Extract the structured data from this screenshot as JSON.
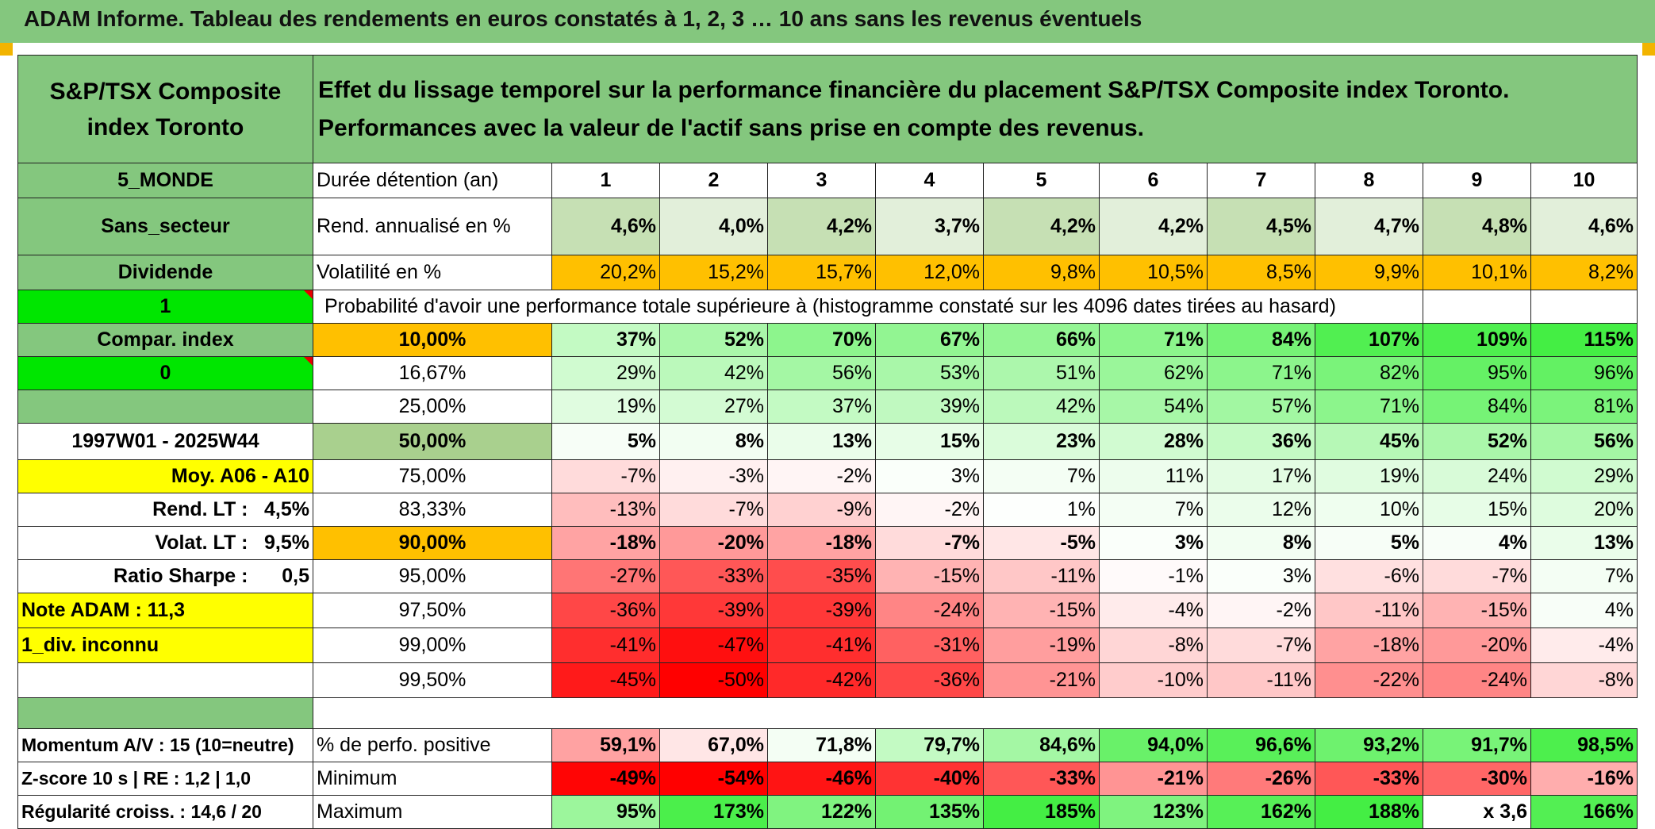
{
  "title": "ADAM Informe. Tableau des rendements en euros constatés à 1, 2, 3 … 10 ans sans les revenus éventuels",
  "index_name": "S&P/TSX Composite index Toronto",
  "description": "Effet du lissage temporel sur la performance financière du placement S&P/TSX Composite index Toronto. Performances avec la valeur de l'actif sans prise en compte des revenus.",
  "left": {
    "region": "5_MONDE",
    "sector": "Sans_secteur",
    "dividend": "Dividende",
    "one": "1",
    "compar": "Compar. index",
    "zero": "0",
    "period": "1997W01 - 2025W44",
    "moy": "Moy. A06 - A10",
    "rend_label": "Rend. LT :",
    "rend_value": "4,5%",
    "volat_label": "Volat. LT :",
    "volat_value": "9,5%",
    "sharpe_label": "Ratio Sharpe :",
    "sharpe_value": "0,5",
    "note": "Note ADAM : 11,3",
    "div": "1_div. inconnu",
    "momentum": "Momentum A/V : 15 (10=neutre)",
    "zscore": "Z-score 10 s | RE : 1,2 | 1,0",
    "regularite": "Régularité croiss. : 14,6 / 20"
  },
  "labels": {
    "duree": "Durée détention (an)",
    "rend": "Rend. annualisé en %",
    "vol": "Volatilité en %",
    "proba": "Probabilité d'avoir une performance totale supérieure à (histogramme constaté sur les 4096 dates tirées au hasard)",
    "positive": "% de perfo. positive",
    "minimum": "Minimum",
    "maximum": "Maximum"
  },
  "years": [
    "1",
    "2",
    "3",
    "4",
    "5",
    "6",
    "7",
    "8",
    "9",
    "10"
  ],
  "rend": [
    "4,6%",
    "4,0%",
    "4,2%",
    "3,7%",
    "4,2%",
    "4,2%",
    "4,5%",
    "4,7%",
    "4,8%",
    "4,6%"
  ],
  "vol": [
    "20,2%",
    "15,2%",
    "15,7%",
    "12,0%",
    "9,8%",
    "10,5%",
    "8,5%",
    "9,9%",
    "10,1%",
    "8,2%"
  ],
  "thresholds": [
    {
      "label": "10,00%",
      "values": [
        "37%",
        "52%",
        "70%",
        "67%",
        "66%",
        "71%",
        "84%",
        "107%",
        "109%",
        "115%"
      ]
    },
    {
      "label": "16,67%",
      "values": [
        "29%",
        "42%",
        "56%",
        "53%",
        "51%",
        "62%",
        "71%",
        "82%",
        "95%",
        "96%"
      ]
    },
    {
      "label": "25,00%",
      "values": [
        "19%",
        "27%",
        "37%",
        "39%",
        "42%",
        "54%",
        "57%",
        "71%",
        "84%",
        "81%"
      ]
    },
    {
      "label": "50,00%",
      "values": [
        "5%",
        "8%",
        "13%",
        "15%",
        "23%",
        "28%",
        "36%",
        "45%",
        "52%",
        "56%"
      ]
    },
    {
      "label": "75,00%",
      "values": [
        "-7%",
        "-3%",
        "-2%",
        "3%",
        "7%",
        "11%",
        "17%",
        "19%",
        "24%",
        "29%"
      ]
    },
    {
      "label": "83,33%",
      "values": [
        "-13%",
        "-7%",
        "-9%",
        "-2%",
        "1%",
        "7%",
        "12%",
        "10%",
        "15%",
        "20%"
      ]
    },
    {
      "label": "90,00%",
      "values": [
        "-18%",
        "-20%",
        "-18%",
        "-7%",
        "-5%",
        "3%",
        "8%",
        "5%",
        "4%",
        "13%"
      ]
    },
    {
      "label": "95,00%",
      "values": [
        "-27%",
        "-33%",
        "-35%",
        "-15%",
        "-11%",
        "-1%",
        "3%",
        "-6%",
        "-7%",
        "7%"
      ]
    },
    {
      "label": "97,50%",
      "values": [
        "-36%",
        "-39%",
        "-39%",
        "-24%",
        "-15%",
        "-4%",
        "-2%",
        "-11%",
        "-15%",
        "4%"
      ]
    },
    {
      "label": "99,00%",
      "values": [
        "-41%",
        "-47%",
        "-41%",
        "-31%",
        "-19%",
        "-8%",
        "-7%",
        "-18%",
        "-20%",
        "-4%"
      ]
    },
    {
      "label": "99,50%",
      "values": [
        "-45%",
        "-50%",
        "-42%",
        "-36%",
        "-21%",
        "-10%",
        "-11%",
        "-22%",
        "-24%",
        "-8%"
      ]
    }
  ],
  "positive": [
    "59,1%",
    "67,0%",
    "71,8%",
    "79,7%",
    "84,6%",
    "94,0%",
    "96,6%",
    "93,2%",
    "91,7%",
    "98,5%"
  ],
  "minimum": [
    "-49%",
    "-54%",
    "-46%",
    "-40%",
    "-33%",
    "-21%",
    "-26%",
    "-33%",
    "-30%",
    "-16%"
  ],
  "maximum": [
    "95%",
    "173%",
    "122%",
    "135%",
    "185%",
    "123%",
    "162%",
    "188%",
    "x 3,6",
    "166%"
  ],
  "colors": {
    "header_green": "#84c77e",
    "yellow": "#ffff00",
    "bright_green": "#00e600",
    "orange": "#ffc000",
    "red_text": "#e60000",
    "scale_red": "#ff0000",
    "scale_white": "#ffffff",
    "scale_green": "#44ee44"
  }
}
